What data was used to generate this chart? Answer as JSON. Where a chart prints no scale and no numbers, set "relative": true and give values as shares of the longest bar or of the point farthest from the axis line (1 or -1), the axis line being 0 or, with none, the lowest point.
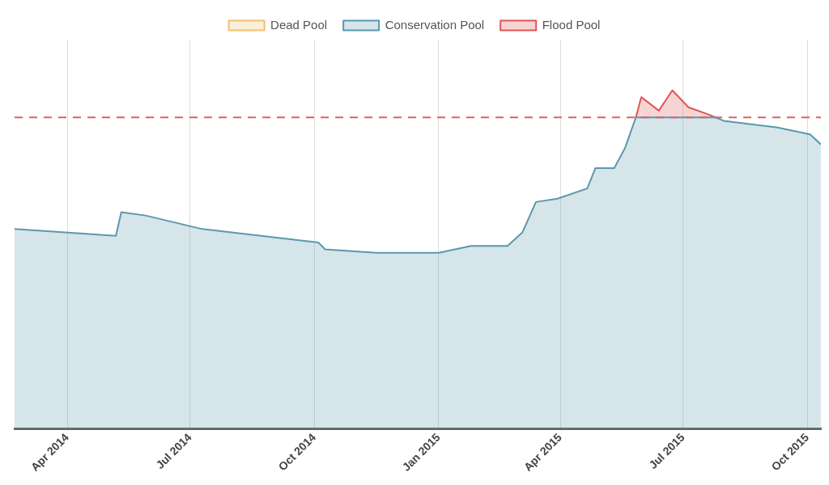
{
  "chart_data": {
    "type": "area",
    "relative": true,
    "stacked": true,
    "legend": "top",
    "grid": "x",
    "marker": "none",
    "xlim": [
      "2014-02-21",
      "2015-10-11"
    ],
    "xticks": [
      {
        "value": "2014-04-01",
        "label": "Apr 2014"
      },
      {
        "value": "2014-07-01",
        "label": "Jul 2014"
      },
      {
        "value": "2014-10-01",
        "label": "Oct 2014"
      },
      {
        "value": "2015-01-01",
        "label": "Jan 2015"
      },
      {
        "value": "2015-04-01",
        "label": "Apr 2015"
      },
      {
        "value": "2015-07-01",
        "label": "Jul 2015"
      },
      {
        "value": "2015-10-01",
        "label": "Oct 2015"
      }
    ],
    "x": [
      "2014-02-21",
      "2014-05-07",
      "2014-05-11",
      "2014-05-29",
      "2014-07-10",
      "2014-10-04",
      "2014-10-09",
      "2014-11-16",
      "2015-01-01",
      "2015-01-25",
      "2015-02-21",
      "2015-03-04",
      "2015-03-14",
      "2015-03-30",
      "2015-04-21",
      "2015-04-27",
      "2015-05-11",
      "2015-05-19",
      "2015-05-27",
      "2015-05-31",
      "2015-06-13",
      "2015-06-23",
      "2015-07-05",
      "2015-07-19",
      "2015-07-25",
      "2015-07-31",
      "2015-09-09",
      "2015-10-03",
      "2015-10-11"
    ],
    "series": [
      {
        "name": "Dead Pool",
        "color": "#f0c070",
        "values": [
          null,
          null,
          null,
          null,
          null,
          null,
          null,
          null,
          null,
          null,
          null,
          null,
          null,
          null,
          null,
          null,
          null,
          null,
          null,
          null,
          null,
          null,
          null,
          null,
          null,
          null,
          null,
          null,
          null
        ]
      },
      {
        "name": "Conservation Pool",
        "color": "#5a98ad",
        "values": [
          0.59,
          0.57,
          0.64,
          0.63,
          0.59,
          0.55,
          0.53,
          0.52,
          0.52,
          0.54,
          0.54,
          0.58,
          0.67,
          0.68,
          0.71,
          0.77,
          0.77,
          0.83,
          0.92,
          0.92,
          0.92,
          0.92,
          0.92,
          0.92,
          0.92,
          0.91,
          0.89,
          0.87,
          0.84
        ]
      },
      {
        "name": "Flood Pool",
        "color": "#e05555",
        "values": [
          null,
          null,
          null,
          null,
          null,
          null,
          null,
          null,
          null,
          null,
          null,
          null,
          null,
          null,
          null,
          null,
          null,
          null,
          0,
          0.06,
          0.02,
          0.08,
          0.03,
          0.01,
          0,
          null,
          null,
          null,
          null
        ]
      }
    ],
    "ref_lines": [
      {
        "axis": "y",
        "value": 0.92,
        "color": "#e06060",
        "line_style": "dashed"
      }
    ]
  }
}
